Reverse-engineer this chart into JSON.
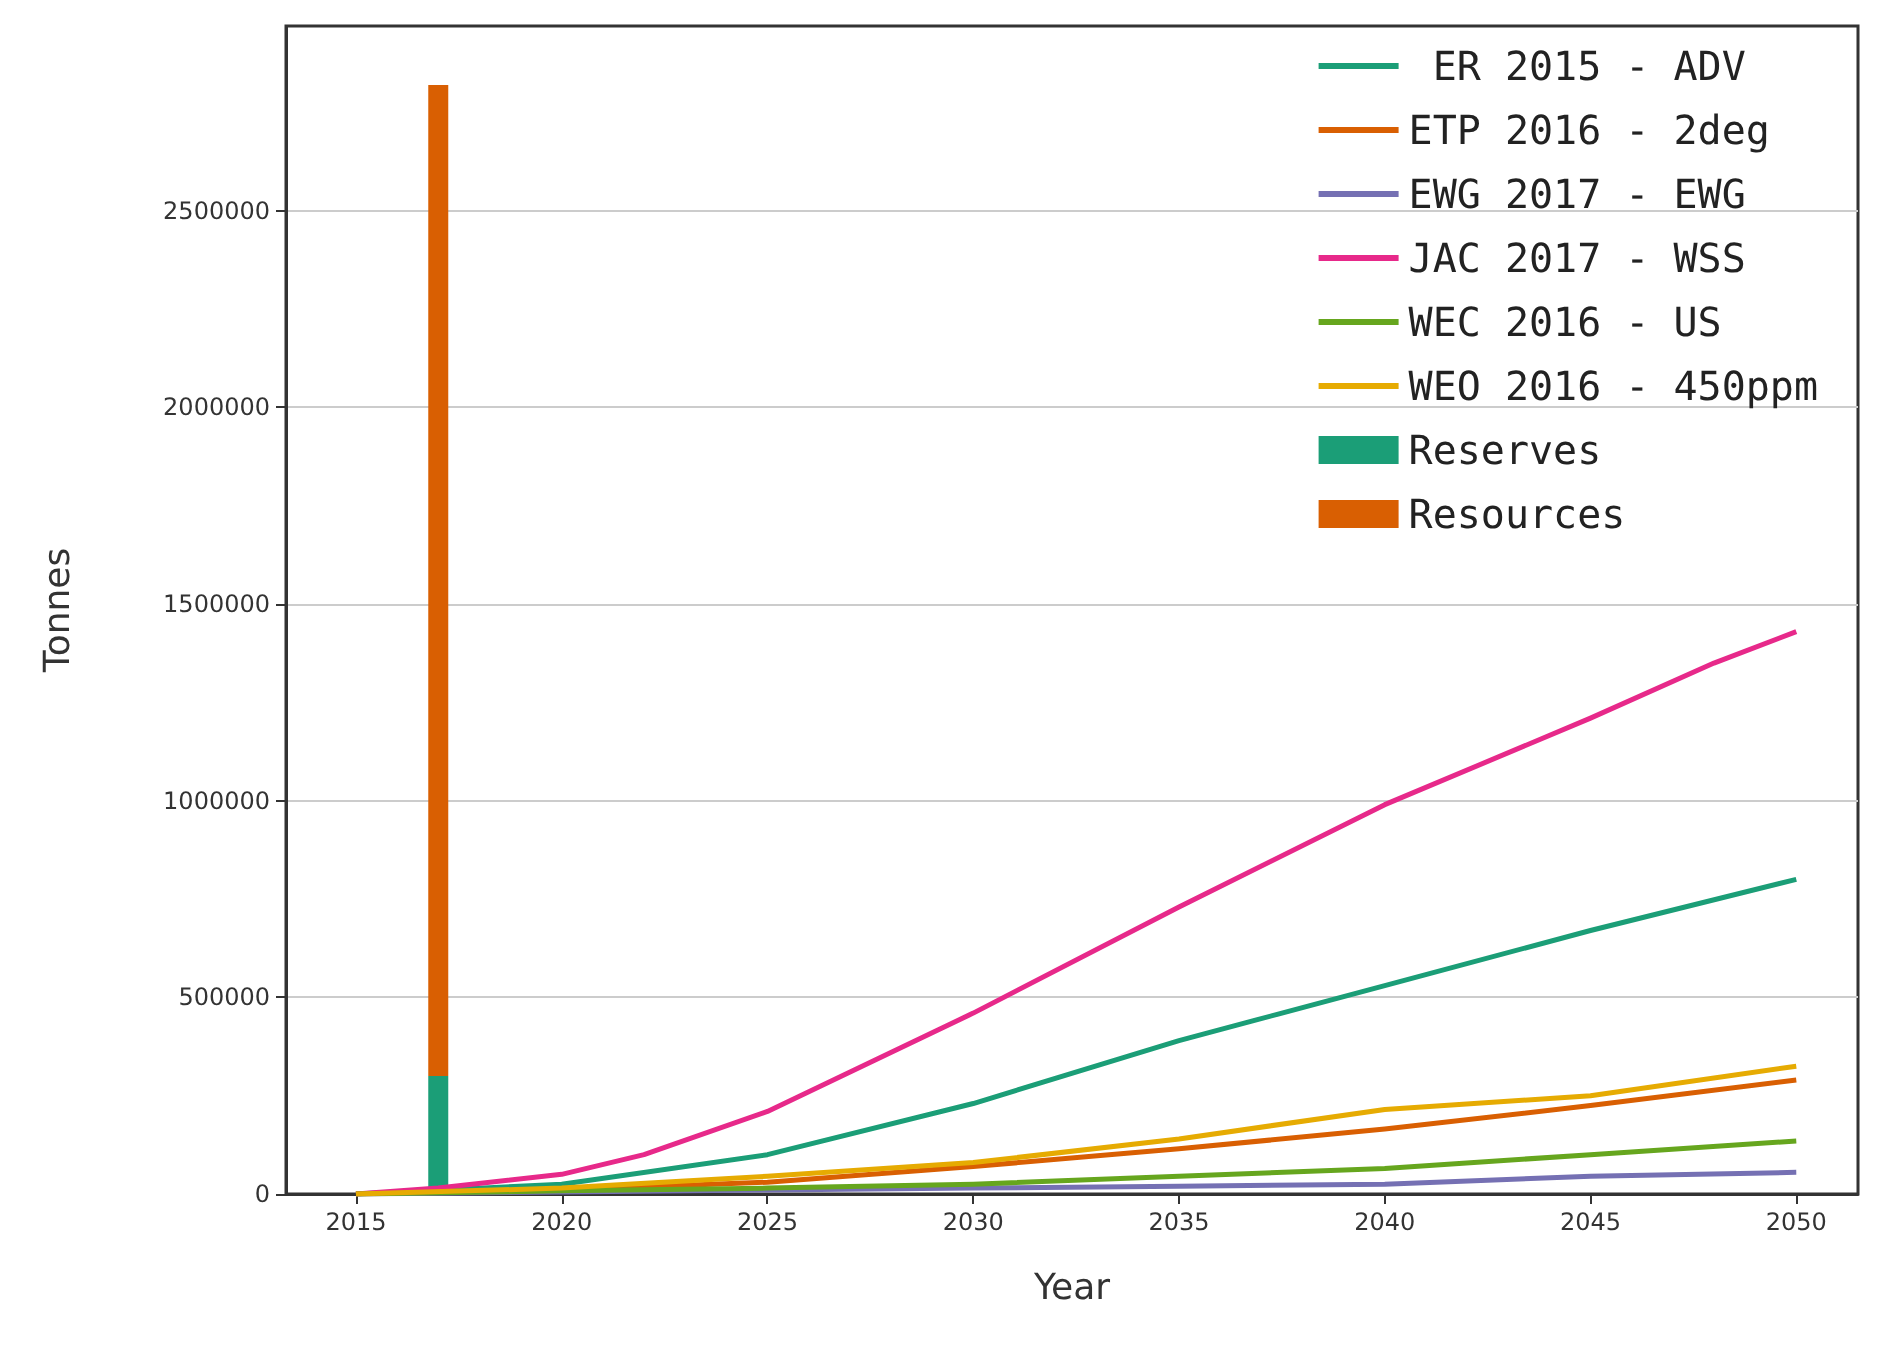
{
  "chart_data": {
    "type": "line",
    "xlabel": "Year",
    "ylabel": "Tonnes",
    "xlim": [
      2013.3,
      2051.5
    ],
    "xticks": [
      2015,
      2020,
      2025,
      2030,
      2035,
      2040,
      2045,
      2050
    ],
    "ylim": [
      0,
      2970000
    ],
    "yticks": [
      0,
      500000,
      1000000,
      1500000,
      2000000,
      2500000
    ],
    "grid": "y",
    "legend": "top right",
    "marker": "none",
    "stacked": true,
    "x": [
      2015,
      2020,
      2025,
      2030,
      2035,
      2040,
      2045,
      2050
    ],
    "series": [
      {
        "name": " ER 2015 - ADV",
        "color": "#1b9e77",
        "values": [
          0,
          25000,
          100000,
          230000,
          390000,
          530000,
          670000,
          800000
        ]
      },
      {
        "name": "ETP 2016 - 2deg",
        "color": "#d95f02",
        "values": [
          0,
          10000,
          30000,
          70000,
          115000,
          165000,
          225000,
          290000
        ]
      },
      {
        "name": "EWG 2017 - EWG",
        "color": "#7570b3",
        "values": [
          0,
          5000,
          10000,
          15000,
          20000,
          25000,
          45000,
          55000
        ]
      },
      {
        "name": "JAC 2017 - WSS",
        "color": "#e7298a",
        "x": [
          2015,
          2017,
          2020,
          2022,
          2025,
          2030,
          2035,
          2040,
          2045,
          2048,
          2050
        ],
        "values": [
          0,
          15000,
          50000,
          100000,
          210000,
          460000,
          730000,
          990000,
          1210000,
          1350000,
          1430000
        ]
      },
      {
        "name": "WEC 2016 - US",
        "color": "#66a61e",
        "values": [
          0,
          8000,
          15000,
          25000,
          45000,
          65000,
          100000,
          135000
        ]
      },
      {
        "name": "WEO 2016 - 450ppm",
        "color": "#e6ab02",
        "values": [
          0,
          15000,
          45000,
          80000,
          140000,
          215000,
          250000,
          325000
        ]
      },
      {
        "name": "Reserves",
        "type": "bar",
        "color": "#1b9e77",
        "x": [
          2017
        ],
        "values": [
          300000
        ]
      },
      {
        "name": "Resources",
        "type": "bar",
        "color": "#d95f02",
        "x": [
          2017
        ],
        "values": [
          2520000
        ]
      }
    ]
  }
}
